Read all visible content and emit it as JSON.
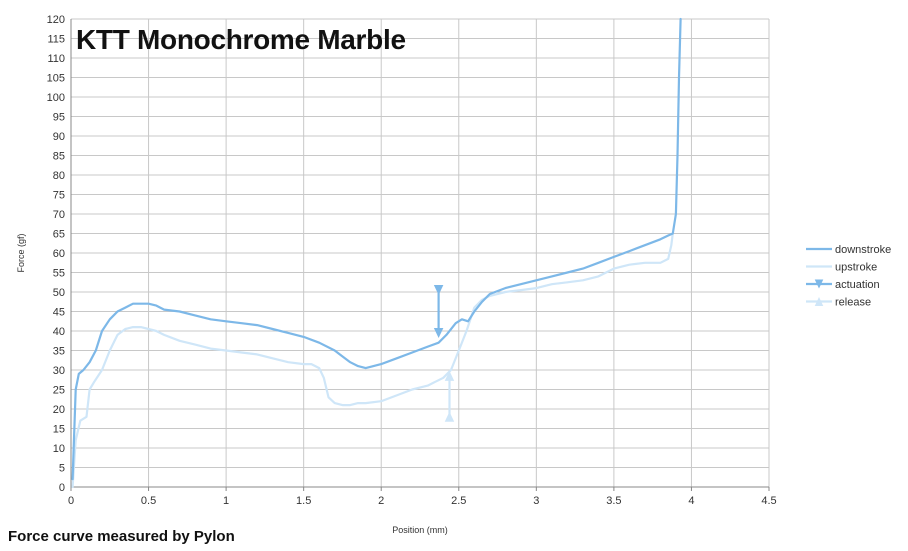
{
  "chart_data": {
    "type": "line",
    "title": "KTT Monochrome Marble",
    "xlabel": "Position (mm)",
    "ylabel": "Force (gf)",
    "xlim": [
      0,
      4.5
    ],
    "ylim": [
      0,
      120
    ],
    "x_ticks": [
      "0",
      "0.5",
      "1",
      "1.5",
      "2",
      "2.5",
      "3",
      "3.5",
      "4",
      "4.5"
    ],
    "y_ticks": [
      "0",
      "5",
      "10",
      "15",
      "20",
      "25",
      "30",
      "35",
      "40",
      "45",
      "50",
      "55",
      "60",
      "65",
      "70",
      "75",
      "80",
      "85",
      "90",
      "95",
      "100",
      "105",
      "110",
      "115",
      "120"
    ],
    "grid": true,
    "legend_position": "right",
    "series": [
      {
        "name": "downstroke",
        "color": "#7db8e8",
        "marker": "none",
        "x": [
          0.01,
          0.03,
          0.05,
          0.08,
          0.12,
          0.16,
          0.2,
          0.25,
          0.3,
          0.35,
          0.4,
          0.45,
          0.5,
          0.55,
          0.6,
          0.7,
          0.8,
          0.9,
          1.0,
          1.1,
          1.2,
          1.3,
          1.4,
          1.5,
          1.6,
          1.7,
          1.75,
          1.8,
          1.85,
          1.9,
          1.95,
          2.0,
          2.1,
          2.2,
          2.3,
          2.37,
          2.42,
          2.48,
          2.52,
          2.56,
          2.6,
          2.65,
          2.7,
          2.8,
          2.9,
          3.0,
          3.1,
          3.2,
          3.3,
          3.4,
          3.5,
          3.6,
          3.7,
          3.8,
          3.85,
          3.88,
          3.9,
          3.91,
          3.92,
          3.93
        ],
        "y": [
          2,
          25,
          29,
          30,
          32,
          35,
          40,
          43,
          45,
          46,
          47,
          47,
          47,
          46.5,
          45.5,
          45,
          44,
          43,
          42.5,
          42,
          41.5,
          40.5,
          39.5,
          38.5,
          37,
          35,
          33.5,
          32,
          31,
          30.5,
          31,
          31.5,
          33,
          34.5,
          36,
          37,
          39,
          42,
          43,
          42.5,
          45,
          47.5,
          49.5,
          51,
          52,
          53,
          54,
          55,
          56,
          57.5,
          59,
          60.5,
          62,
          63.5,
          64.5,
          65,
          70,
          85,
          105,
          120
        ]
      },
      {
        "name": "upstroke",
        "color": "#cfe6f8",
        "marker": "none",
        "x": [
          0.01,
          0.03,
          0.06,
          0.1,
          0.12,
          0.15,
          0.2,
          0.25,
          0.3,
          0.35,
          0.4,
          0.45,
          0.5,
          0.55,
          0.6,
          0.7,
          0.8,
          0.9,
          1.0,
          1.1,
          1.2,
          1.3,
          1.4,
          1.5,
          1.55,
          1.6,
          1.63,
          1.66,
          1.7,
          1.75,
          1.8,
          1.85,
          1.9,
          2.0,
          2.1,
          2.2,
          2.3,
          2.35,
          2.4,
          2.45,
          2.5,
          2.55,
          2.6,
          2.65,
          2.7,
          2.8,
          2.9,
          3.0,
          3.1,
          3.2,
          3.3,
          3.4,
          3.5,
          3.6,
          3.7,
          3.8,
          3.85,
          3.87,
          3.88
        ],
        "y": [
          0,
          12,
          17,
          18,
          25,
          27,
          30,
          35,
          39,
          40.5,
          41,
          41,
          40.5,
          40,
          39,
          37.5,
          36.5,
          35.5,
          35,
          34.5,
          34,
          33,
          32,
          31.5,
          31.5,
          30.5,
          28,
          23,
          21.5,
          21,
          21,
          21.5,
          21.5,
          22,
          23.5,
          25,
          26,
          27,
          28,
          30,
          35,
          40,
          46,
          48,
          49,
          50,
          50.5,
          51,
          52,
          52.5,
          53,
          54,
          56,
          57,
          57.5,
          57.5,
          58.5,
          62,
          65
        ]
      },
      {
        "name": "actuation",
        "color": "#7db8e8",
        "marker": "triangle-down",
        "x": [
          2.37,
          2.37
        ],
        "y": [
          50.5,
          39.5
        ]
      },
      {
        "name": "release",
        "color": "#cfe6f8",
        "marker": "triangle-up",
        "x": [
          2.44,
          2.44
        ],
        "y": [
          28.5,
          18
        ]
      }
    ]
  },
  "footer_note": "Force curve measured by Pylon"
}
